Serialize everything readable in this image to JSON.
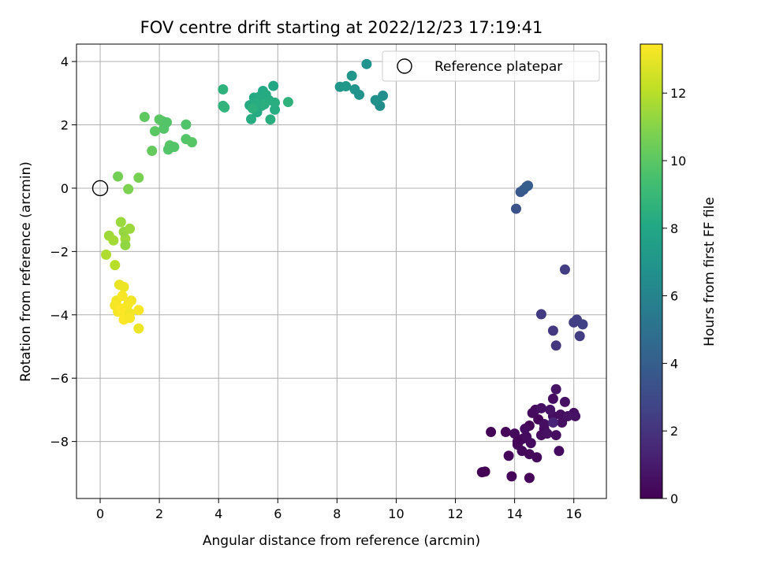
{
  "chart_data": {
    "type": "scatter",
    "title": "FOV centre drift starting at 2022/12/23 17:19:41",
    "xlabel": "Angular distance from reference (arcmin)",
    "ylabel": "Rotation from reference (arcmin)",
    "xlim": [
      -0.8,
      17.1
    ],
    "ylim": [
      -9.8,
      4.55
    ],
    "x_ticks": [
      0,
      2,
      4,
      6,
      8,
      10,
      12,
      14,
      16
    ],
    "y_ticks": [
      4,
      2,
      0,
      -2,
      -4,
      -6,
      -8
    ],
    "grid": true,
    "legend": {
      "placement": "top-right",
      "entries": [
        "Reference platepar"
      ]
    },
    "colorbar": {
      "label": "Hours from first FF file",
      "min": 0,
      "max": 13.45,
      "ticks": [
        0,
        2,
        4,
        6,
        8,
        10,
        12
      ],
      "colormap": "viridis"
    },
    "reference_point": {
      "x": 0,
      "y": 0
    },
    "points": [
      {
        "x": 14.5,
        "y": -7.5,
        "t": 0.1
      },
      {
        "x": 14.8,
        "y": -7.3,
        "t": 0.2
      },
      {
        "x": 15.0,
        "y": -7.6,
        "t": 0.3
      },
      {
        "x": 14.3,
        "y": -7.9,
        "t": 0.2
      },
      {
        "x": 14.7,
        "y": -7.0,
        "t": 0.4
      },
      {
        "x": 15.3,
        "y": -7.2,
        "t": 0.5
      },
      {
        "x": 15.6,
        "y": -7.4,
        "t": 0.6
      },
      {
        "x": 14.1,
        "y": -8.1,
        "t": 0.3
      },
      {
        "x": 13.7,
        "y": -7.7,
        "t": 0.2
      },
      {
        "x": 13.2,
        "y": -7.7,
        "t": 0.1
      },
      {
        "x": 13.0,
        "y": -8.95,
        "t": 0.1
      },
      {
        "x": 12.9,
        "y": -8.97,
        "t": 0.1
      },
      {
        "x": 13.9,
        "y": -9.1,
        "t": 0.2
      },
      {
        "x": 14.5,
        "y": -9.15,
        "t": 0.2
      },
      {
        "x": 13.8,
        "y": -8.45,
        "t": 0.2
      },
      {
        "x": 14.5,
        "y": -8.4,
        "t": 0.3
      },
      {
        "x": 14.75,
        "y": -8.5,
        "t": 0.3
      },
      {
        "x": 15.5,
        "y": -8.3,
        "t": 0.4
      },
      {
        "x": 15.7,
        "y": -6.75,
        "t": 0.6
      },
      {
        "x": 15.4,
        "y": -6.35,
        "t": 0.7
      },
      {
        "x": 16.0,
        "y": -7.1,
        "t": 0.5
      },
      {
        "x": 16.05,
        "y": -7.2,
        "t": 0.6
      },
      {
        "x": 15.3,
        "y": -6.65,
        "t": 0.5
      },
      {
        "x": 14.9,
        "y": -7.8,
        "t": 0.4
      },
      {
        "x": 14.2,
        "y": -7.95,
        "t": 0.3
      },
      {
        "x": 14.4,
        "y": -7.85,
        "t": 0.4
      },
      {
        "x": 15.4,
        "y": -7.8,
        "t": 0.5
      },
      {
        "x": 14.6,
        "y": -7.1,
        "t": 0.4
      },
      {
        "x": 14.0,
        "y": -7.75,
        "t": 0.3
      },
      {
        "x": 15.1,
        "y": -7.75,
        "t": 0.6
      },
      {
        "x": 14.25,
        "y": -8.3,
        "t": 0.3
      },
      {
        "x": 14.55,
        "y": -8.05,
        "t": 0.4
      },
      {
        "x": 15.2,
        "y": -7.0,
        "t": 0.7
      },
      {
        "x": 14.9,
        "y": -6.95,
        "t": 0.6
      },
      {
        "x": 15.55,
        "y": -7.15,
        "t": 0.5
      },
      {
        "x": 14.35,
        "y": -7.6,
        "t": 0.4
      },
      {
        "x": 15.8,
        "y": -7.2,
        "t": 0.7
      },
      {
        "x": 15.0,
        "y": -7.45,
        "t": 0.5
      },
      {
        "x": 14.1,
        "y": -8.0,
        "t": 0.2
      },
      {
        "x": 15.3,
        "y": -7.4,
        "t": 1.4
      },
      {
        "x": 14.9,
        "y": -3.98,
        "t": 2.3
      },
      {
        "x": 15.7,
        "y": -2.57,
        "t": 2.4
      },
      {
        "x": 16.0,
        "y": -4.24,
        "t": 2.5
      },
      {
        "x": 16.1,
        "y": -4.15,
        "t": 2.5
      },
      {
        "x": 16.3,
        "y": -4.3,
        "t": 2.6
      },
      {
        "x": 16.2,
        "y": -4.67,
        "t": 2.4
      },
      {
        "x": 15.3,
        "y": -4.5,
        "t": 2.2
      },
      {
        "x": 15.4,
        "y": -4.97,
        "t": 2.1
      },
      {
        "x": 14.05,
        "y": -0.65,
        "t": 3.4
      },
      {
        "x": 14.2,
        "y": -0.12,
        "t": 3.7
      },
      {
        "x": 14.3,
        "y": -0.05,
        "t": 3.8
      },
      {
        "x": 14.4,
        "y": 0.05,
        "t": 3.9
      },
      {
        "x": 14.45,
        "y": 0.08,
        "t": 4.0
      },
      {
        "x": 9.0,
        "y": 3.92,
        "t": 6.8
      },
      {
        "x": 8.5,
        "y": 3.55,
        "t": 7.0
      },
      {
        "x": 8.1,
        "y": 3.2,
        "t": 7.1
      },
      {
        "x": 8.3,
        "y": 3.22,
        "t": 7.1
      },
      {
        "x": 8.6,
        "y": 3.12,
        "t": 6.9
      },
      {
        "x": 8.75,
        "y": 2.95,
        "t": 6.8
      },
      {
        "x": 9.3,
        "y": 2.78,
        "t": 6.6
      },
      {
        "x": 9.45,
        "y": 2.6,
        "t": 6.5
      },
      {
        "x": 9.55,
        "y": 2.92,
        "t": 6.6
      },
      {
        "x": 9.35,
        "y": 2.75,
        "t": 6.7
      },
      {
        "x": 4.15,
        "y": 3.12,
        "t": 8.6
      },
      {
        "x": 4.15,
        "y": 2.6,
        "t": 8.7
      },
      {
        "x": 4.2,
        "y": 2.55,
        "t": 8.7
      },
      {
        "x": 5.05,
        "y": 2.62,
        "t": 8.2
      },
      {
        "x": 5.2,
        "y": 2.86,
        "t": 8.1
      },
      {
        "x": 5.4,
        "y": 2.9,
        "t": 8.2
      },
      {
        "x": 5.5,
        "y": 3.07,
        "t": 8.1
      },
      {
        "x": 5.85,
        "y": 3.23,
        "t": 8.0
      },
      {
        "x": 5.9,
        "y": 2.7,
        "t": 8.4
      },
      {
        "x": 5.7,
        "y": 2.78,
        "t": 8.3
      },
      {
        "x": 5.1,
        "y": 2.18,
        "t": 8.3
      },
      {
        "x": 5.3,
        "y": 2.4,
        "t": 8.2
      },
      {
        "x": 5.45,
        "y": 2.6,
        "t": 8.3
      },
      {
        "x": 5.6,
        "y": 2.95,
        "t": 8.2
      },
      {
        "x": 5.25,
        "y": 2.68,
        "t": 8.3
      },
      {
        "x": 5.75,
        "y": 2.17,
        "t": 8.4
      },
      {
        "x": 5.9,
        "y": 2.48,
        "t": 8.3
      },
      {
        "x": 6.35,
        "y": 2.72,
        "t": 8.6
      },
      {
        "x": 5.15,
        "y": 2.52,
        "t": 8.5
      },
      {
        "x": 5.55,
        "y": 2.65,
        "t": 8.4
      },
      {
        "x": 1.5,
        "y": 2.25,
        "t": 10.1
      },
      {
        "x": 2.0,
        "y": 2.17,
        "t": 10.0
      },
      {
        "x": 2.1,
        "y": 2.12,
        "t": 9.9
      },
      {
        "x": 2.25,
        "y": 2.08,
        "t": 9.8
      },
      {
        "x": 2.15,
        "y": 1.88,
        "t": 9.8
      },
      {
        "x": 1.85,
        "y": 1.8,
        "t": 10.0
      },
      {
        "x": 2.9,
        "y": 2.01,
        "t": 9.7
      },
      {
        "x": 2.35,
        "y": 1.35,
        "t": 9.9
      },
      {
        "x": 2.5,
        "y": 1.3,
        "t": 9.8
      },
      {
        "x": 2.3,
        "y": 1.22,
        "t": 9.8
      },
      {
        "x": 1.75,
        "y": 1.18,
        "t": 10.2
      },
      {
        "x": 2.9,
        "y": 1.55,
        "t": 9.8
      },
      {
        "x": 3.1,
        "y": 1.45,
        "t": 9.9
      },
      {
        "x": 0.6,
        "y": 0.37,
        "t": 10.6
      },
      {
        "x": 0.95,
        "y": -0.03,
        "t": 10.8
      },
      {
        "x": 1.3,
        "y": 0.33,
        "t": 10.7
      },
      {
        "x": 0.7,
        "y": -1.07,
        "t": 11.4
      },
      {
        "x": 0.3,
        "y": -1.5,
        "t": 11.5
      },
      {
        "x": 0.45,
        "y": -1.65,
        "t": 11.6
      },
      {
        "x": 0.85,
        "y": -1.6,
        "t": 11.5
      },
      {
        "x": 0.8,
        "y": -1.38,
        "t": 11.3
      },
      {
        "x": 1.0,
        "y": -1.28,
        "t": 11.4
      },
      {
        "x": 0.85,
        "y": -1.8,
        "t": 11.2
      },
      {
        "x": 0.2,
        "y": -2.1,
        "t": 11.8
      },
      {
        "x": 0.5,
        "y": -2.43,
        "t": 12.0
      },
      {
        "x": 0.65,
        "y": -3.05,
        "t": 13.0
      },
      {
        "x": 0.8,
        "y": -3.12,
        "t": 13.1
      },
      {
        "x": 0.55,
        "y": -3.55,
        "t": 13.2
      },
      {
        "x": 0.75,
        "y": -3.4,
        "t": 13.3
      },
      {
        "x": 1.05,
        "y": -3.55,
        "t": 13.2
      },
      {
        "x": 0.5,
        "y": -3.7,
        "t": 13.3
      },
      {
        "x": 0.9,
        "y": -3.75,
        "t": 13.4
      },
      {
        "x": 0.6,
        "y": -3.9,
        "t": 13.3
      },
      {
        "x": 0.85,
        "y": -4.0,
        "t": 13.4
      },
      {
        "x": 1.0,
        "y": -3.95,
        "t": 13.2
      },
      {
        "x": 1.3,
        "y": -3.85,
        "t": 13.3
      },
      {
        "x": 0.8,
        "y": -4.15,
        "t": 13.4
      },
      {
        "x": 1.0,
        "y": -4.1,
        "t": 13.3
      },
      {
        "x": 1.3,
        "y": -4.43,
        "t": 13.1
      },
      {
        "x": 0.7,
        "y": -3.8,
        "t": 13.4
      },
      {
        "x": 0.95,
        "y": -3.65,
        "t": 13.3
      }
    ]
  }
}
